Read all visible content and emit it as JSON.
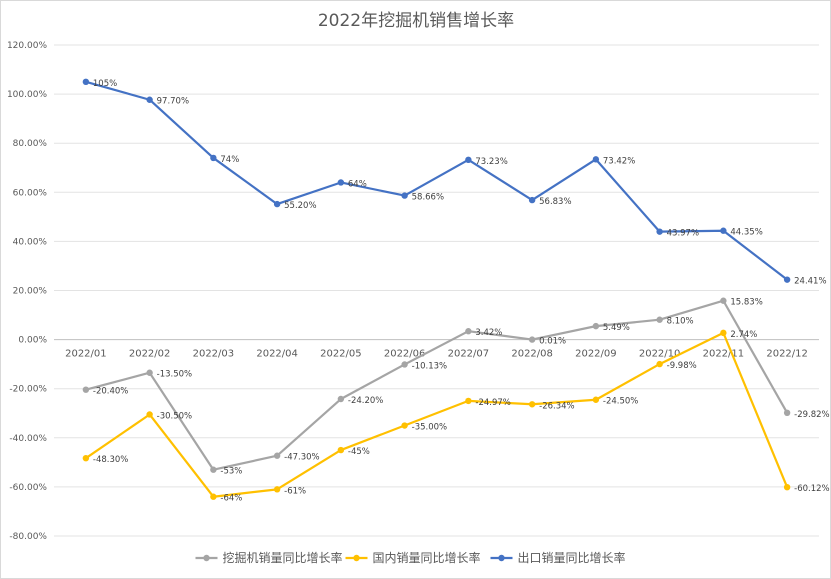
{
  "chart_data": {
    "type": "line",
    "title": "2022年挖掘机销售增长率",
    "categories": [
      "2022/01",
      "2022/02",
      "2022/03",
      "2022/04",
      "2022/05",
      "2022/06",
      "2022/07",
      "2022/08",
      "2022/09",
      "2022/10",
      "2022/11",
      "2022/12"
    ],
    "ylim": [
      -80,
      120
    ],
    "yticks": [
      -80,
      -60,
      -40,
      -20,
      0,
      20,
      40,
      60,
      80,
      100,
      120
    ],
    "ytick_labels": [
      "-80.00%",
      "-60.00%",
      "-40.00%",
      "-20.00%",
      "0.00%",
      "20.00%",
      "40.00%",
      "60.00%",
      "80.00%",
      "100.00%",
      "120.00%"
    ],
    "grid": true,
    "legend_position": "bottom",
    "series": [
      {
        "name": "挖掘机销量同比增长率",
        "color": "#a5a5a5",
        "values": [
          -20.4,
          -13.5,
          -53,
          -47.3,
          -24.2,
          -10.13,
          3.42,
          0.01,
          5.49,
          8.1,
          15.83,
          -29.82
        ],
        "labels": [
          "-20.40%",
          "-13.50%",
          "-53%",
          "-47.30%",
          "-24.20%",
          "-10.13%",
          "3.42%",
          "0.01%",
          "5.49%",
          "8.10%",
          "15.83%",
          "-29.82%"
        ]
      },
      {
        "name": "国内销量同比增长率",
        "color": "#ffc000",
        "values": [
          -48.3,
          -30.5,
          -64,
          -61,
          -45,
          -35.0,
          -24.97,
          -26.34,
          -24.5,
          -9.98,
          2.74,
          -60.12
        ],
        "labels": [
          "-48.30%",
          "-30.50%",
          "-64%",
          "-61%",
          "-45%",
          "-35.00%",
          "-24.97%",
          "-26.34%",
          "-24.50%",
          "-9.98%",
          "2.74%",
          "-60.12%"
        ]
      },
      {
        "name": "出口销量同比增长率",
        "color": "#4472c4",
        "values": [
          105,
          97.7,
          74,
          55.2,
          64,
          58.66,
          73.23,
          56.83,
          73.42,
          43.97,
          44.35,
          24.41
        ],
        "labels": [
          "105%",
          "97.70%",
          "74%",
          "55.20%",
          "64%",
          "58.66%",
          "73.23%",
          "56.83%",
          "73.42%",
          "43.97%",
          "44.35%",
          "24.41%"
        ]
      }
    ]
  }
}
